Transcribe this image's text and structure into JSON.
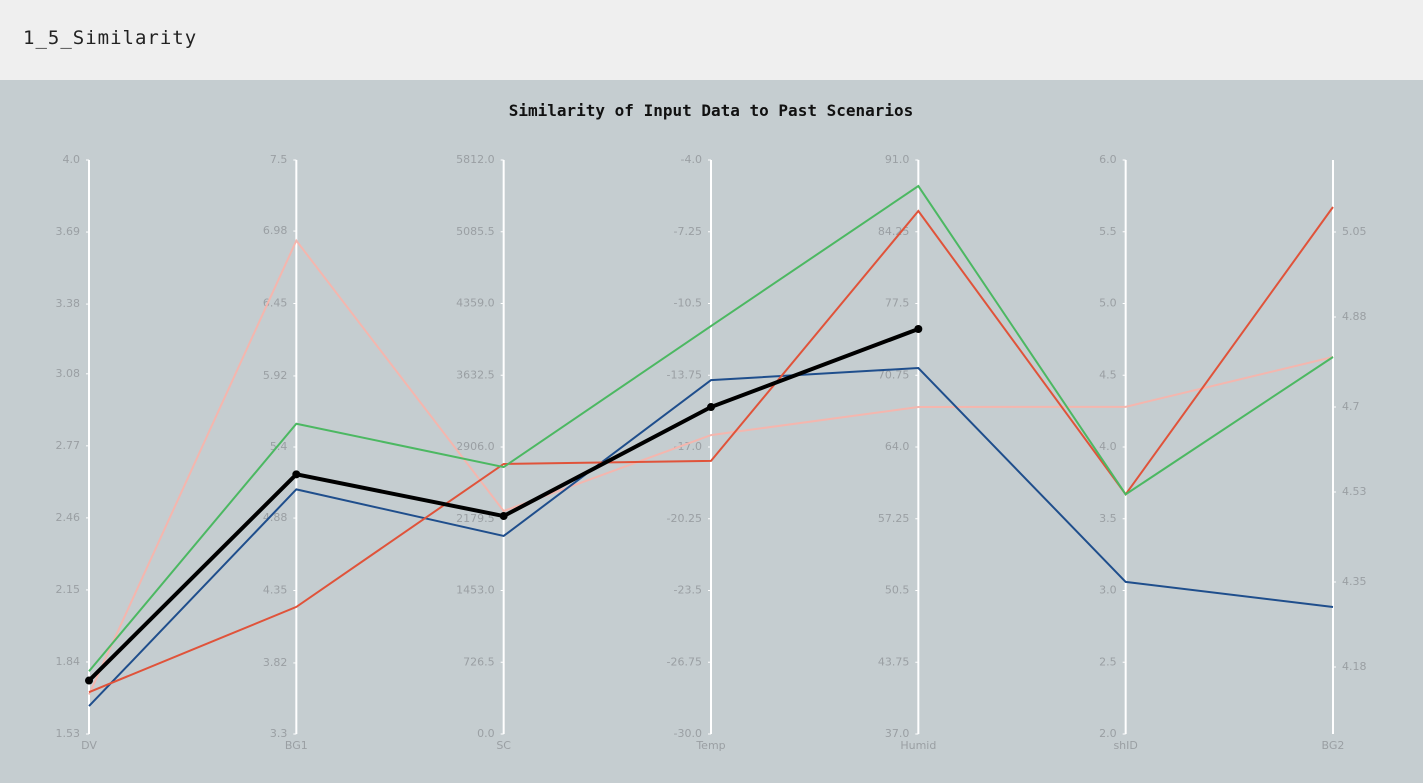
{
  "header": {
    "title": "1_5_Similarity"
  },
  "chart_data": {
    "type": "parallel",
    "title": "Similarity of Input Data to Past Scenarios",
    "axes": [
      {
        "name": "DV",
        "ylim": [
          1.53,
          4.0
        ],
        "yticks": [
          1.53,
          1.84,
          2.15,
          2.46,
          2.77,
          3.08,
          3.38,
          3.69,
          {
            "value": 4,
            "label": "4.0"
          }
        ]
      },
      {
        "name": "BG1",
        "ylim": [
          3.3,
          7.5
        ],
        "yticks": [
          3.3,
          3.82,
          4.35,
          4.88,
          5.4,
          5.92,
          6.45,
          6.98,
          7.5
        ]
      },
      {
        "name": "SC",
        "ylim": [
          0,
          5812
        ],
        "yticks": [
          {
            "value": 0,
            "label": "0.0"
          },
          726.5,
          {
            "value": 1453,
            "label": "1453.0"
          },
          2179.5,
          {
            "value": 2906,
            "label": "2906.0"
          },
          3632.5,
          {
            "value": 4359,
            "label": "4359.0"
          },
          5085.5,
          {
            "value": 5812,
            "label": "5812.0"
          }
        ]
      },
      {
        "name": "Temp",
        "ylim": [
          -30,
          -4
        ],
        "yticks": [
          {
            "value": -30,
            "label": "-30.0"
          },
          -26.75,
          -23.5,
          -20.25,
          {
            "value": -17,
            "label": "-17.0"
          },
          -13.75,
          -10.5,
          -7.25,
          {
            "value": -4,
            "label": "-4.0"
          }
        ]
      },
      {
        "name": "Humid",
        "ylim": [
          37,
          91
        ],
        "yticks": [
          {
            "value": 37,
            "label": "37.0"
          },
          43.75,
          50.5,
          57.25,
          {
            "value": 64,
            "label": "64.0"
          },
          70.75,
          77.5,
          84.25,
          {
            "value": 91,
            "label": "91.0"
          }
        ]
      },
      {
        "name": "shID",
        "ylim": [
          2,
          6
        ],
        "yticks": [
          {
            "value": 2,
            "label": "2.0"
          },
          2.5,
          {
            "value": 3,
            "label": "3.0"
          },
          3.5,
          {
            "value": 4,
            "label": "4.0"
          },
          4.5,
          {
            "value": 5,
            "label": "5.0"
          },
          5.5,
          {
            "value": 6,
            "label": "6.0"
          }
        ]
      },
      {
        "name": "BG2",
        "ylim": [
          4.046,
          5.194
        ],
        "yticks": [
          4.18,
          4.35,
          4.53,
          4.7,
          4.88,
          5.05
        ]
      }
    ],
    "series": [
      {
        "color": "#f4b6ae",
        "values": [
          1.7,
          6.91,
          2258,
          -16.46,
          67.76,
          4.28,
          4.8
        ]
      },
      {
        "color": "#1f4e8c",
        "values": [
          1.65,
          5.09,
          2005,
          -13.97,
          71.43,
          3.06,
          4.3
        ]
      },
      {
        "color": "#e0533a",
        "values": [
          1.71,
          4.23,
          2734,
          -17.63,
          86.2,
          3.67,
          5.1
        ]
      },
      {
        "color": "#4cb862",
        "values": [
          1.8,
          5.57,
          2703,
          -11.52,
          88.55,
          3.67,
          4.8
        ]
      },
      {
        "color": "#000000",
        "values": [
          1.76,
          5.2,
          2207,
          -15.19,
          75.1,
          null,
          null
        ]
      }
    ]
  }
}
